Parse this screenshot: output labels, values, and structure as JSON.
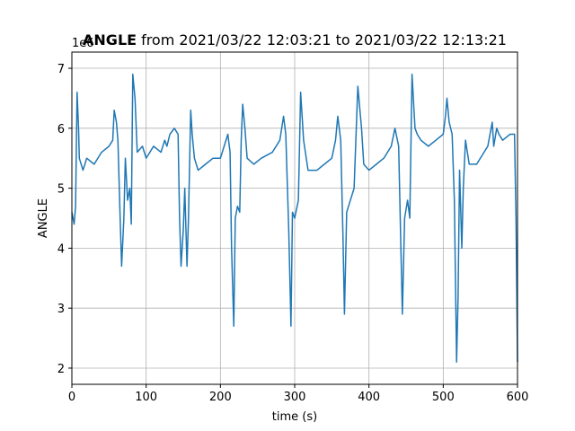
{
  "chart_data": {
    "type": "line",
    "title_name": "ANGLE",
    "title_rest": "from 2021/03/22 12:03:21 to 2021/03/22 12:13:21",
    "offset_label": "1e6",
    "xlabel": "time (s)",
    "ylabel": "ANGLE",
    "xlim": [
      0,
      600
    ],
    "ylim": [
      1.73,
      7.27
    ],
    "xticks": [
      0,
      100,
      200,
      300,
      400,
      500,
      600
    ],
    "yticks": [
      2,
      3,
      4,
      5,
      6,
      7
    ],
    "grid": true,
    "x": [
      0,
      3,
      5,
      7,
      9,
      10,
      15,
      20,
      30,
      40,
      50,
      55,
      57,
      60,
      62,
      65,
      67,
      70,
      72,
      75,
      78,
      80,
      82,
      85,
      88,
      95,
      100,
      110,
      120,
      125,
      128,
      132,
      138,
      143,
      145,
      147,
      150,
      152,
      155,
      157,
      160,
      162,
      165,
      170,
      180,
      190,
      200,
      205,
      210,
      213,
      215,
      218,
      220,
      223,
      226,
      228,
      230,
      233,
      236,
      245,
      255,
      270,
      280,
      285,
      288,
      292,
      295,
      297,
      300,
      305,
      308,
      312,
      318,
      330,
      340,
      350,
      355,
      358,
      362,
      365,
      367,
      370,
      375,
      380,
      385,
      390,
      393,
      400,
      410,
      420,
      430,
      435,
      440,
      443,
      445,
      448,
      452,
      455,
      458,
      462,
      465,
      470,
      480,
      490,
      500,
      503,
      505,
      508,
      512,
      515,
      518,
      520,
      522,
      525,
      527,
      530,
      535,
      545,
      555,
      560,
      566,
      568,
      572,
      575,
      580,
      590,
      596,
      598,
      600
    ],
    "series": [
      {
        "name": "ANGLE",
        "color": "#1f77b4",
        "values": [
          4.6,
          4.4,
          4.7,
          6.6,
          6.0,
          5.5,
          5.3,
          5.5,
          5.4,
          5.6,
          5.7,
          5.8,
          6.3,
          6.1,
          5.8,
          4.5,
          3.7,
          4.5,
          5.5,
          4.8,
          5.0,
          4.4,
          6.9,
          6.5,
          5.6,
          5.7,
          5.5,
          5.7,
          5.6,
          5.8,
          5.7,
          5.9,
          6.0,
          5.9,
          4.5,
          3.7,
          4.3,
          5.0,
          3.7,
          4.5,
          6.3,
          5.9,
          5.5,
          5.3,
          5.4,
          5.5,
          5.5,
          5.7,
          5.9,
          5.6,
          4.0,
          2.7,
          4.5,
          4.7,
          4.6,
          5.8,
          6.4,
          6.0,
          5.5,
          5.4,
          5.5,
          5.6,
          5.8,
          6.2,
          5.9,
          4.3,
          2.7,
          4.6,
          4.5,
          4.8,
          6.6,
          5.8,
          5.3,
          5.3,
          5.4,
          5.5,
          5.8,
          6.2,
          5.8,
          4.2,
          2.9,
          4.6,
          4.8,
          5.0,
          6.7,
          6.0,
          5.4,
          5.3,
          5.4,
          5.5,
          5.7,
          6.0,
          5.7,
          4.0,
          2.9,
          4.5,
          4.8,
          4.5,
          6.9,
          6.0,
          5.9,
          5.8,
          5.7,
          5.8,
          5.9,
          6.2,
          6.5,
          6.1,
          5.9,
          4.8,
          2.1,
          3.2,
          5.3,
          4.0,
          5.0,
          5.8,
          5.4,
          5.4,
          5.6,
          5.7,
          6.1,
          5.7,
          6.0,
          5.9,
          5.8,
          5.9,
          5.9,
          4.5,
          2.1
        ]
      }
    ]
  }
}
